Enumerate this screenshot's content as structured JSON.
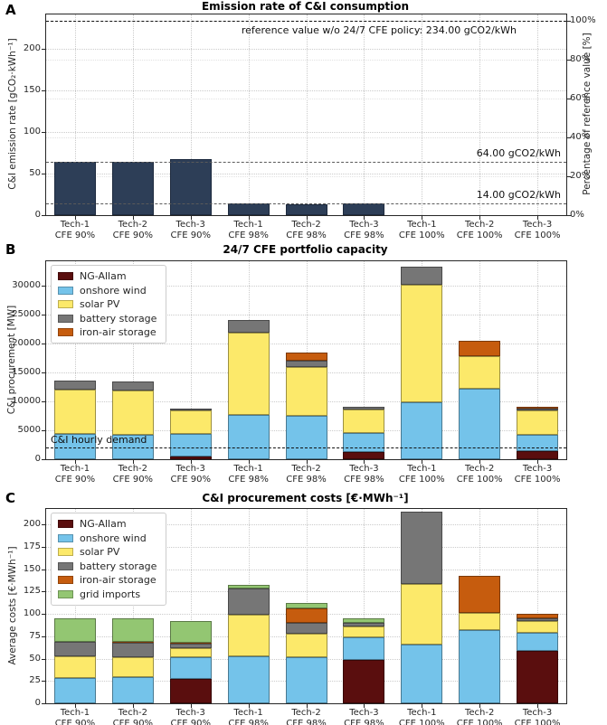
{
  "shared_categories": [
    [
      "Tech-1",
      "CFE 90%"
    ],
    [
      "Tech-2",
      "CFE 90%"
    ],
    [
      "Tech-3",
      "CFE 90%"
    ],
    [
      "Tech-1",
      "CFE 98%"
    ],
    [
      "Tech-2",
      "CFE 98%"
    ],
    [
      "Tech-3",
      "CFE 98%"
    ],
    [
      "Tech-1",
      "CFE 100%"
    ],
    [
      "Tech-2",
      "CFE 100%"
    ],
    [
      "Tech-3",
      "CFE 100%"
    ]
  ],
  "chart_data": [
    {
      "panel_label": "A",
      "type": "bar",
      "title": "Emission rate of C&I consumption",
      "ylabel": "C&I emission rate [gCO₂·kWh⁻¹]",
      "ylabel_right": "Percentage of reference value [%]",
      "yticks": [
        0,
        50,
        100,
        150,
        200
      ],
      "yticks_right_pct": [
        0,
        20,
        40,
        60,
        80,
        100
      ],
      "ylim": [
        0,
        241.5
      ],
      "bar_color": "#2d3e57",
      "values": [
        64,
        64,
        67,
        14,
        13,
        14,
        0,
        0,
        0
      ],
      "reference_value": 234,
      "ref_lines": [
        {
          "value": 234,
          "label": "reference value w/o 24/7 CFE policy: 234.00 gCO2/kWh",
          "emphasis": "strong",
          "label_placement": "below-right-inset"
        },
        {
          "value": 64,
          "label": "64.00 gCO2/kWh",
          "emphasis": "muted",
          "label_placement": "above-right"
        },
        {
          "value": 14,
          "label": "14.00 gCO2/kWh",
          "emphasis": "muted",
          "label_placement": "above-right"
        }
      ]
    },
    {
      "panel_label": "B",
      "type": "stacked-bar",
      "title": "24/7 CFE portfolio capacity",
      "ylabel": "C&I procurement [MW]",
      "yticks": [
        0,
        5000,
        10000,
        15000,
        20000,
        25000,
        30000
      ],
      "ylim": [
        0,
        34200
      ],
      "legend_position": "upper-left",
      "series": [
        {
          "name": "NG-Allam",
          "color": "#5a0e0e",
          "values": [
            0,
            0,
            500,
            0,
            0,
            1200,
            0,
            0,
            1400
          ]
        },
        {
          "name": "onshore wind",
          "color": "#74c3ea",
          "values": [
            4300,
            4200,
            3800,
            7700,
            7500,
            3300,
            9800,
            12200,
            2800
          ]
        },
        {
          "name": "solar PV",
          "color": "#fce96a",
          "values": [
            7700,
            7700,
            4100,
            14200,
            8400,
            4100,
            20400,
            5600,
            4200
          ]
        },
        {
          "name": "battery storage",
          "color": "#767676",
          "values": [
            1600,
            1600,
            400,
            2100,
            1100,
            400,
            3000,
            0,
            300
          ]
        },
        {
          "name": "iron-air storage",
          "color": "#c65c0e",
          "values": [
            0,
            0,
            0,
            0,
            1400,
            0,
            0,
            2700,
            400
          ]
        }
      ],
      "demand_line": {
        "value": 2000,
        "label": "C&I hourly demand"
      }
    },
    {
      "panel_label": "C",
      "type": "stacked-bar",
      "title": "C&I procurement costs [€·MWh⁻¹]",
      "ylabel": "Average costs [€·MWh⁻¹]",
      "yticks": [
        0,
        25,
        50,
        75,
        100,
        125,
        150,
        175,
        200
      ],
      "ylim": [
        0,
        217.5
      ],
      "legend_position": "upper-left",
      "series": [
        {
          "name": "NG-Allam",
          "color": "#5a0e0e",
          "values": [
            0,
            0,
            27,
            0,
            0,
            49,
            0,
            0,
            59
          ]
        },
        {
          "name": "onshore wind",
          "color": "#74c3ea",
          "values": [
            28,
            29,
            25,
            53,
            52,
            25,
            66,
            82,
            20
          ]
        },
        {
          "name": "solar PV",
          "color": "#fce96a",
          "values": [
            25,
            22.5,
            10,
            46,
            26,
            12,
            68,
            19,
            13
          ]
        },
        {
          "name": "battery storage",
          "color": "#767676",
          "values": [
            16,
            16,
            5,
            29,
            12,
            4,
            80,
            0,
            3
          ]
        },
        {
          "name": "iron-air storage",
          "color": "#c65c0e",
          "values": [
            0,
            1.5,
            1,
            0,
            16,
            0,
            0,
            42,
            5
          ]
        },
        {
          "name": "grid imports",
          "color": "#93c672",
          "values": [
            26,
            26,
            24,
            5,
            6,
            5,
            0,
            0,
            0
          ]
        }
      ]
    }
  ]
}
